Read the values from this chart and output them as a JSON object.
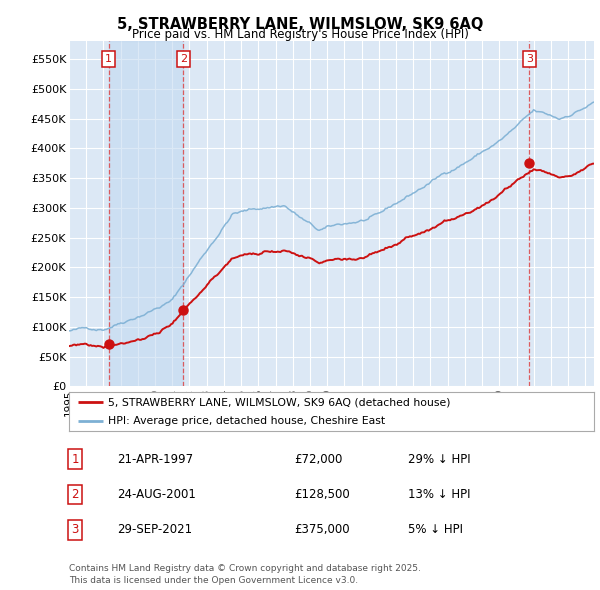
{
  "title": "5, STRAWBERRY LANE, WILMSLOW, SK9 6AQ",
  "subtitle": "Price paid vs. HM Land Registry's House Price Index (HPI)",
  "ylim": [
    0,
    580000
  ],
  "yticks": [
    0,
    50000,
    100000,
    150000,
    200000,
    250000,
    300000,
    350000,
    400000,
    450000,
    500000,
    550000
  ],
  "ytick_labels": [
    "£0",
    "£50K",
    "£100K",
    "£150K",
    "£200K",
    "£250K",
    "£300K",
    "£350K",
    "£400K",
    "£450K",
    "£500K",
    "£550K"
  ],
  "background_color": "#ffffff",
  "plot_bg_color": "#dce8f5",
  "grid_color": "#ffffff",
  "hpi_line_color": "#7db0d4",
  "price_line_color": "#cc1111",
  "sale1_date_num": 1997.3,
  "sale1_price": 72000,
  "sale2_date_num": 2001.64,
  "sale2_price": 128500,
  "sale3_date_num": 2021.75,
  "sale3_price": 375000,
  "vband1_start": 1997.3,
  "vband1_end": 2001.64,
  "legend_line1": "5, STRAWBERRY LANE, WILMSLOW, SK9 6AQ (detached house)",
  "legend_line2": "HPI: Average price, detached house, Cheshire East",
  "table_entries": [
    [
      "1",
      "21-APR-1997",
      "£72,000",
      "29% ↓ HPI"
    ],
    [
      "2",
      "24-AUG-2001",
      "£128,500",
      "13% ↓ HPI"
    ],
    [
      "3",
      "29-SEP-2021",
      "£375,000",
      "5% ↓ HPI"
    ]
  ],
  "footnote": "Contains HM Land Registry data © Crown copyright and database right 2025.\nThis data is licensed under the Open Government Licence v3.0.",
  "xmin": 1995.0,
  "xmax": 2025.5
}
